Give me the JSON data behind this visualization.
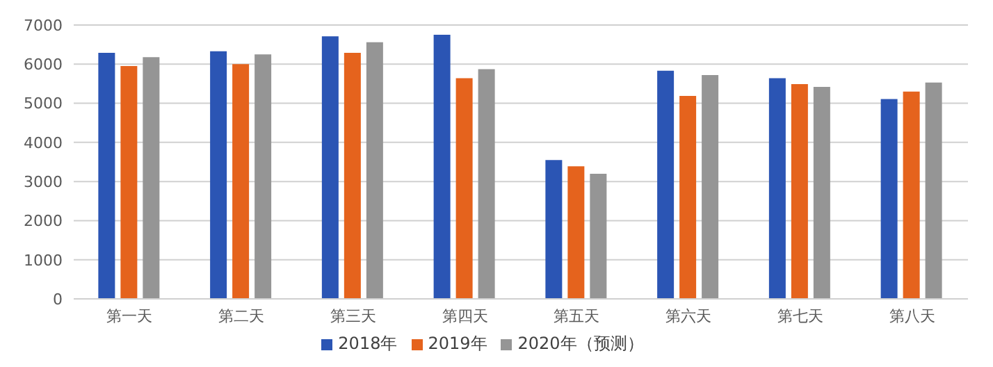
{
  "chart_data": {
    "type": "bar",
    "categories": [
      "第一天",
      "第二天",
      "第三天",
      "第四天",
      "第五天",
      "第六天",
      "第七天",
      "第八天"
    ],
    "series": [
      {
        "name": "2018年",
        "color": "#2b55b4",
        "values": [
          6290,
          6330,
          6710,
          6750,
          3550,
          5830,
          5640,
          5110
        ]
      },
      {
        "name": "2019年",
        "color": "#e5631d",
        "values": [
          5950,
          6000,
          6290,
          5640,
          3390,
          5190,
          5490,
          5300
        ]
      },
      {
        "name": "2020年（预测）",
        "color": "#959595",
        "values": [
          6180,
          6250,
          6560,
          5870,
          3200,
          5720,
          5420,
          5530
        ]
      }
    ],
    "ylim": [
      0,
      7000
    ],
    "yticks": [
      0,
      1000,
      2000,
      3000,
      4000,
      5000,
      6000,
      7000
    ],
    "grid": "y",
    "legend": "bottom"
  }
}
